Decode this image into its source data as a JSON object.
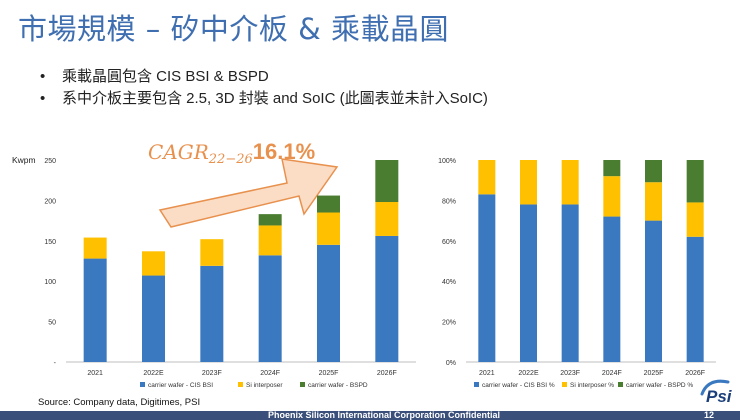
{
  "slide": {
    "title": "市場規模 – 矽中介板 & 乘載晶圓",
    "bullets": [
      "乘載晶圓包含 CIS BSI & BSPD",
      "系中介板主要包含 2.5, 3D 封裝 and SoIC  (此圖表並未計入SoIC)"
    ],
    "cagr_label": "CAGR",
    "cagr_sub": "22−26",
    "cagr_value": "16.1%",
    "source": "Source: Company data, Digitimes, PSI",
    "footer": "Phoenix Silicon International Corporation Confidential",
    "page_number": "12",
    "logo_text": "Psi"
  },
  "colors": {
    "cis": "#3a78bf",
    "si": "#ffc000",
    "bspd": "#4a7d2f",
    "arrow_fill": "#fbdcc5",
    "arrow_stroke": "#e8914e"
  },
  "chart_data": [
    {
      "type": "bar",
      "stacked": true,
      "ylabel": "Kwpm",
      "categories": [
        "2021",
        "2022E",
        "2023F",
        "2024F",
        "2025F",
        "2026F"
      ],
      "ylim": [
        0,
        250
      ],
      "yticks": [
        "-",
        "50",
        "100",
        "150",
        "200",
        "250"
      ],
      "series": [
        {
          "name": "carrier wafer - CIS BSI",
          "values": [
            128,
            107,
            119,
            132,
            145,
            156
          ]
        },
        {
          "name": "Si interposer",
          "values": [
            26,
            30,
            33,
            37,
            40,
            42
          ]
        },
        {
          "name": "carrier wafer - BSPD",
          "values": [
            0,
            0,
            0,
            14,
            21,
            52
          ]
        }
      ],
      "grid": false,
      "legend": "bottom"
    },
    {
      "type": "bar",
      "stacked": true,
      "categories": [
        "2021",
        "2022E",
        "2023F",
        "2024F",
        "2025F",
        "2026F"
      ],
      "ylim": [
        0,
        100
      ],
      "yticks": [
        "0%",
        "20%",
        "40%",
        "60%",
        "80%",
        "100%"
      ],
      "series": [
        {
          "name": "carrier wafer - CIS BSI %",
          "values": [
            83,
            78,
            78,
            72,
            70,
            62
          ]
        },
        {
          "name": "Si interposer %",
          "values": [
            17,
            22,
            22,
            20,
            19,
            17
          ]
        },
        {
          "name": "carrier wafer - BSPD %",
          "values": [
            0,
            0,
            0,
            8,
            11,
            21
          ]
        }
      ],
      "grid": false,
      "legend": "bottom"
    }
  ]
}
